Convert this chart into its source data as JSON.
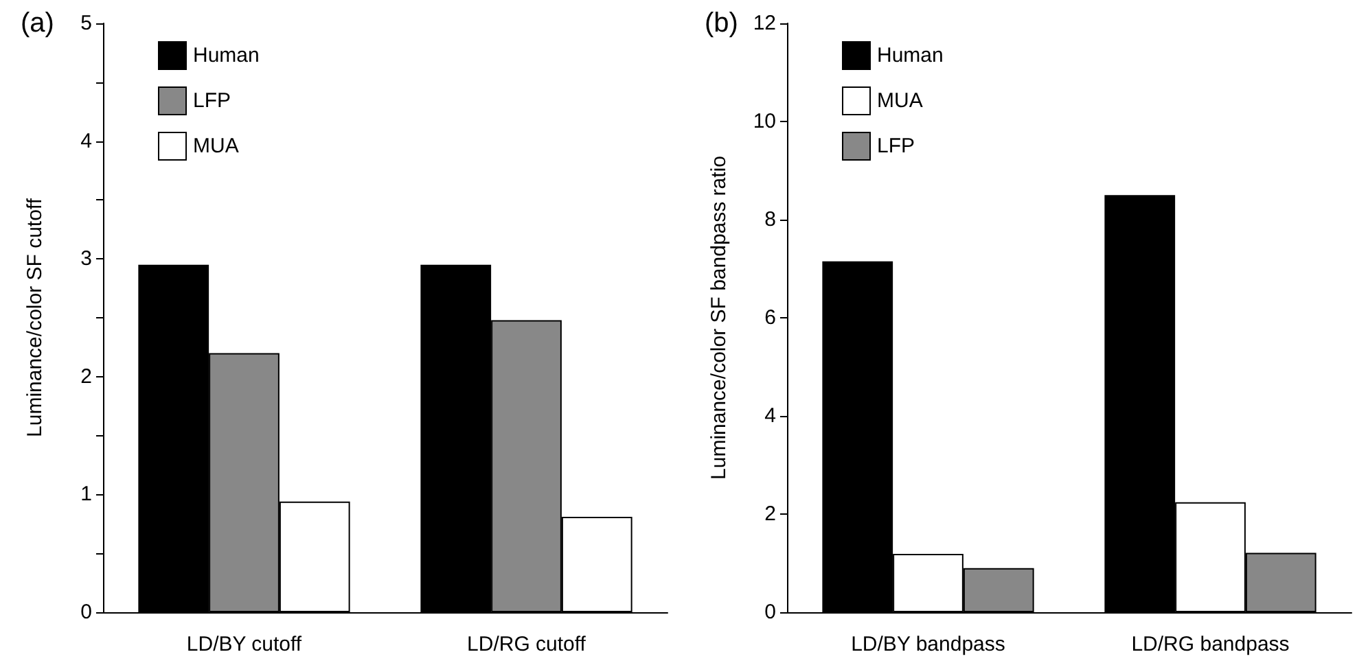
{
  "chart_data": [
    {
      "type": "bar",
      "title": "(a)",
      "ylabel": "Luminance/color SF cutoff",
      "categories": [
        "LD/BY cutoff",
        "LD/RG cutoff"
      ],
      "series": [
        {
          "name": "Human",
          "color": "#000000",
          "values": [
            2.95,
            2.95
          ]
        },
        {
          "name": "LFP",
          "color": "#888888",
          "values": [
            2.2,
            2.48
          ]
        },
        {
          "name": "MUA",
          "color": "#ffffff",
          "values": [
            0.94,
            0.81
          ]
        }
      ],
      "ylim": [
        0,
        5
      ],
      "yticks": [
        0,
        {
          "value": 0.5,
          "label": null
        },
        1,
        {
          "value": 1.5,
          "label": null
        },
        2,
        {
          "value": 2.5,
          "label": null
        },
        3,
        {
          "value": 3.5,
          "label": null
        },
        4,
        {
          "value": 4.5,
          "label": null
        },
        5
      ],
      "grid": false,
      "legend": "top left"
    },
    {
      "type": "bar",
      "title": "(b)",
      "ylabel": "Luminance/color SF bandpass ratio",
      "categories": [
        "LD/BY bandpass",
        "LD/RG bandpass"
      ],
      "series": [
        {
          "name": "Human",
          "color": "#000000",
          "values": [
            7.15,
            8.5
          ]
        },
        {
          "name": "MUA",
          "color": "#ffffff",
          "values": [
            1.19,
            2.24
          ]
        },
        {
          "name": "LFP",
          "color": "#888888",
          "values": [
            0.9,
            1.21
          ]
        }
      ],
      "ylim": [
        0,
        12
      ],
      "yticks": [
        0,
        2,
        4,
        6,
        8,
        10,
        12
      ],
      "grid": false,
      "legend": "top left"
    }
  ]
}
